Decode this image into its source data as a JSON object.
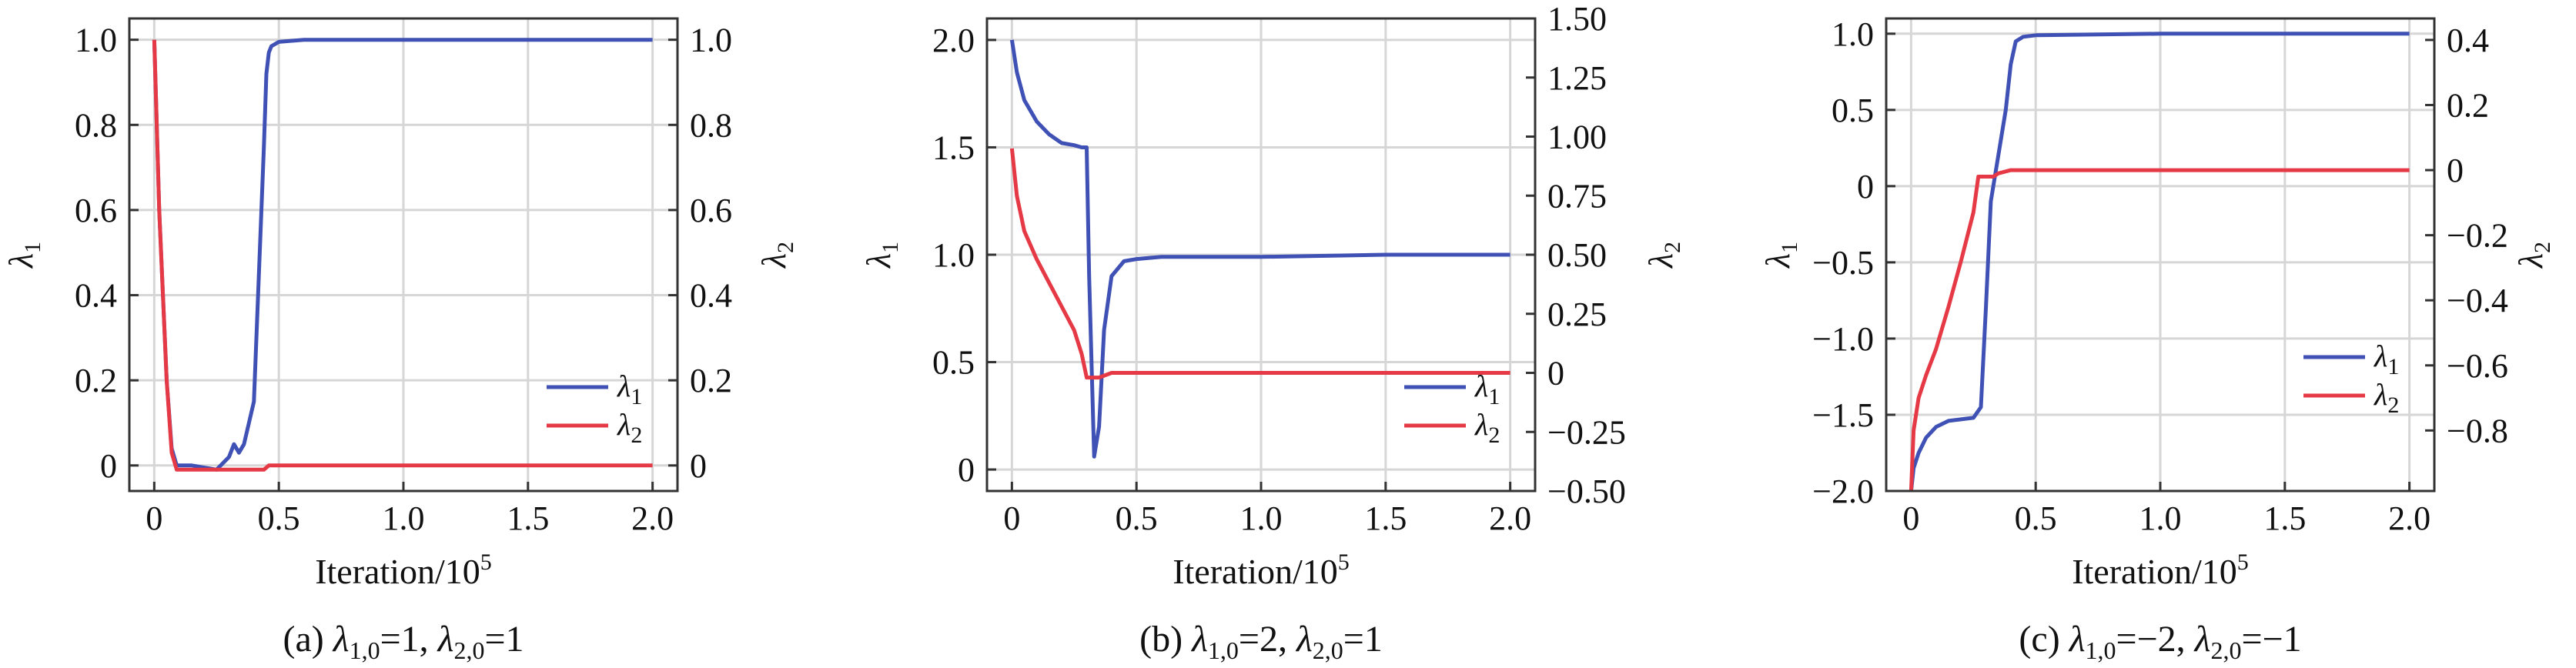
{
  "chart_data": [
    {
      "type": "line",
      "caption": "(a) λ1,0=1, λ2,0=1",
      "xlabel": "Iteration/10⁵",
      "ylabel_left": "λ1",
      "ylabel_right": "λ2",
      "xlim": [
        -0.1,
        2.1
      ],
      "ylim_left": [
        -0.06,
        1.05
      ],
      "ylim_right": [
        -0.06,
        1.05
      ],
      "x_ticks": [
        "0",
        "0.5",
        "1.0",
        "1.5",
        "2.0"
      ],
      "y_left_ticks": [
        "0",
        "0.2",
        "0.4",
        "0.6",
        "0.8",
        "1.0"
      ],
      "y_right_ticks": [
        "0",
        "0.2",
        "0.4",
        "0.6",
        "0.8",
        "1.0"
      ],
      "grid": true,
      "legend_position": "lower-right",
      "colors": {
        "lambda1": "#3f51b5",
        "lambda2": "#e53945"
      },
      "series": [
        {
          "name": "λ1",
          "axis": "left",
          "color": "#3f51b5",
          "x": [
            0,
            0.02,
            0.05,
            0.07,
            0.09,
            0.15,
            0.25,
            0.3,
            0.32,
            0.34,
            0.36,
            0.4,
            0.42,
            0.44,
            0.45,
            0.46,
            0.47,
            0.5,
            0.6,
            0.8,
            1.0,
            1.5,
            2.0
          ],
          "y": [
            1.0,
            0.6,
            0.2,
            0.04,
            0.0,
            0.0,
            -0.01,
            0.02,
            0.05,
            0.03,
            0.05,
            0.15,
            0.45,
            0.75,
            0.92,
            0.97,
            0.985,
            0.995,
            1.0,
            1.0,
            1.0,
            1.0,
            1.0
          ]
        },
        {
          "name": "λ2",
          "axis": "right",
          "color": "#e53945",
          "x": [
            0,
            0.02,
            0.05,
            0.07,
            0.09,
            0.15,
            0.3,
            0.44,
            0.46,
            0.5,
            1.0,
            1.5,
            2.0
          ],
          "y": [
            1.0,
            0.6,
            0.2,
            0.03,
            -0.01,
            -0.01,
            -0.01,
            -0.01,
            0.0,
            0.0,
            0.0,
            0.0,
            0.0
          ]
        }
      ]
    },
    {
      "type": "line",
      "caption": "(b) λ1,0=2, λ2,0=1",
      "xlabel": "Iteration/10⁵",
      "ylabel_left": "λ1",
      "ylabel_right": "λ2",
      "xlim": [
        -0.1,
        2.1
      ],
      "ylim_left": [
        -0.1,
        2.1
      ],
      "ylim_right": [
        -0.5,
        1.5
      ],
      "x_ticks": [
        "0",
        "0.5",
        "1.0",
        "1.5",
        "2.0"
      ],
      "y_left_ticks": [
        "0",
        "0.5",
        "1.0",
        "1.5",
        "2.0"
      ],
      "y_right_ticks": [
        "−0.50",
        "−0.25",
        "0",
        "0.25",
        "0.50",
        "0.75",
        "1.00",
        "1.25",
        "1.50"
      ],
      "grid": true,
      "legend_position": "lower-right",
      "colors": {
        "lambda1": "#3f51b5",
        "lambda2": "#e53945"
      },
      "series": [
        {
          "name": "λ1",
          "axis": "left",
          "color": "#3f51b5",
          "x": [
            0,
            0.02,
            0.05,
            0.1,
            0.15,
            0.2,
            0.25,
            0.28,
            0.3,
            0.31,
            0.33,
            0.35,
            0.37,
            0.4,
            0.45,
            0.5,
            0.6,
            1.0,
            1.5,
            2.0
          ],
          "y": [
            2.0,
            1.85,
            1.72,
            1.62,
            1.56,
            1.52,
            1.51,
            1.5,
            1.5,
            0.9,
            0.06,
            0.2,
            0.65,
            0.9,
            0.97,
            0.98,
            0.99,
            0.99,
            1.0,
            1.0
          ]
        },
        {
          "name": "λ2",
          "axis": "right",
          "color": "#e53945",
          "x": [
            0,
            0.02,
            0.05,
            0.1,
            0.15,
            0.2,
            0.25,
            0.28,
            0.3,
            0.35,
            0.4,
            0.5,
            1.0,
            1.5,
            2.0
          ],
          "y": [
            0.95,
            0.75,
            0.6,
            0.48,
            0.38,
            0.28,
            0.18,
            0.08,
            -0.02,
            -0.02,
            0.0,
            0.0,
            0.0,
            0.0,
            0.0
          ]
        }
      ]
    },
    {
      "type": "line",
      "caption": "(c) λ1,0=−2, λ2,0=−1",
      "xlabel": "Iteration/10⁵",
      "ylabel_left": "λ1",
      "ylabel_right": "λ2",
      "xlim": [
        -0.1,
        2.1
      ],
      "ylim_left": [
        -2.0,
        1.1
      ],
      "ylim_right": [
        -0.986,
        0.466
      ],
      "x_ticks": [
        "0",
        "0.5",
        "1.0",
        "1.5",
        "2.0"
      ],
      "y_left_ticks": [
        "−2.0",
        "−1.5",
        "−1.0",
        "−0.5",
        "0",
        "0.5",
        "1.0"
      ],
      "y_right_ticks": [
        "−0.8",
        "−0.6",
        "−0.4",
        "−0.2",
        "0",
        "0.2",
        "0.4"
      ],
      "grid": true,
      "legend_position": "right",
      "colors": {
        "lambda1": "#3f51b5",
        "lambda2": "#e53945"
      },
      "series": [
        {
          "name": "λ1",
          "axis": "left",
          "color": "#3f51b5",
          "x": [
            0,
            0.01,
            0.03,
            0.06,
            0.1,
            0.15,
            0.2,
            0.25,
            0.28,
            0.3,
            0.32,
            0.35,
            0.38,
            0.4,
            0.42,
            0.45,
            0.5,
            1.0,
            1.5,
            2.0
          ],
          "y": [
            -2.0,
            -1.85,
            -1.75,
            -1.65,
            -1.58,
            -1.54,
            -1.53,
            -1.52,
            -1.45,
            -0.8,
            -0.1,
            0.2,
            0.5,
            0.8,
            0.95,
            0.98,
            0.99,
            1.0,
            1.0,
            1.0
          ]
        },
        {
          "name": "λ2",
          "axis": "right",
          "color": "#e53945",
          "x": [
            0,
            0.01,
            0.03,
            0.06,
            0.1,
            0.15,
            0.2,
            0.25,
            0.27,
            0.33,
            0.35,
            0.4,
            0.45,
            0.5,
            1.0,
            1.5,
            2.0
          ],
          "y": [
            -0.986,
            -0.8,
            -0.7,
            -0.63,
            -0.55,
            -0.42,
            -0.28,
            -0.13,
            -0.02,
            -0.02,
            -0.01,
            0.0,
            0.0,
            0.0,
            0.0,
            0.0,
            0.0
          ]
        }
      ]
    }
  ]
}
